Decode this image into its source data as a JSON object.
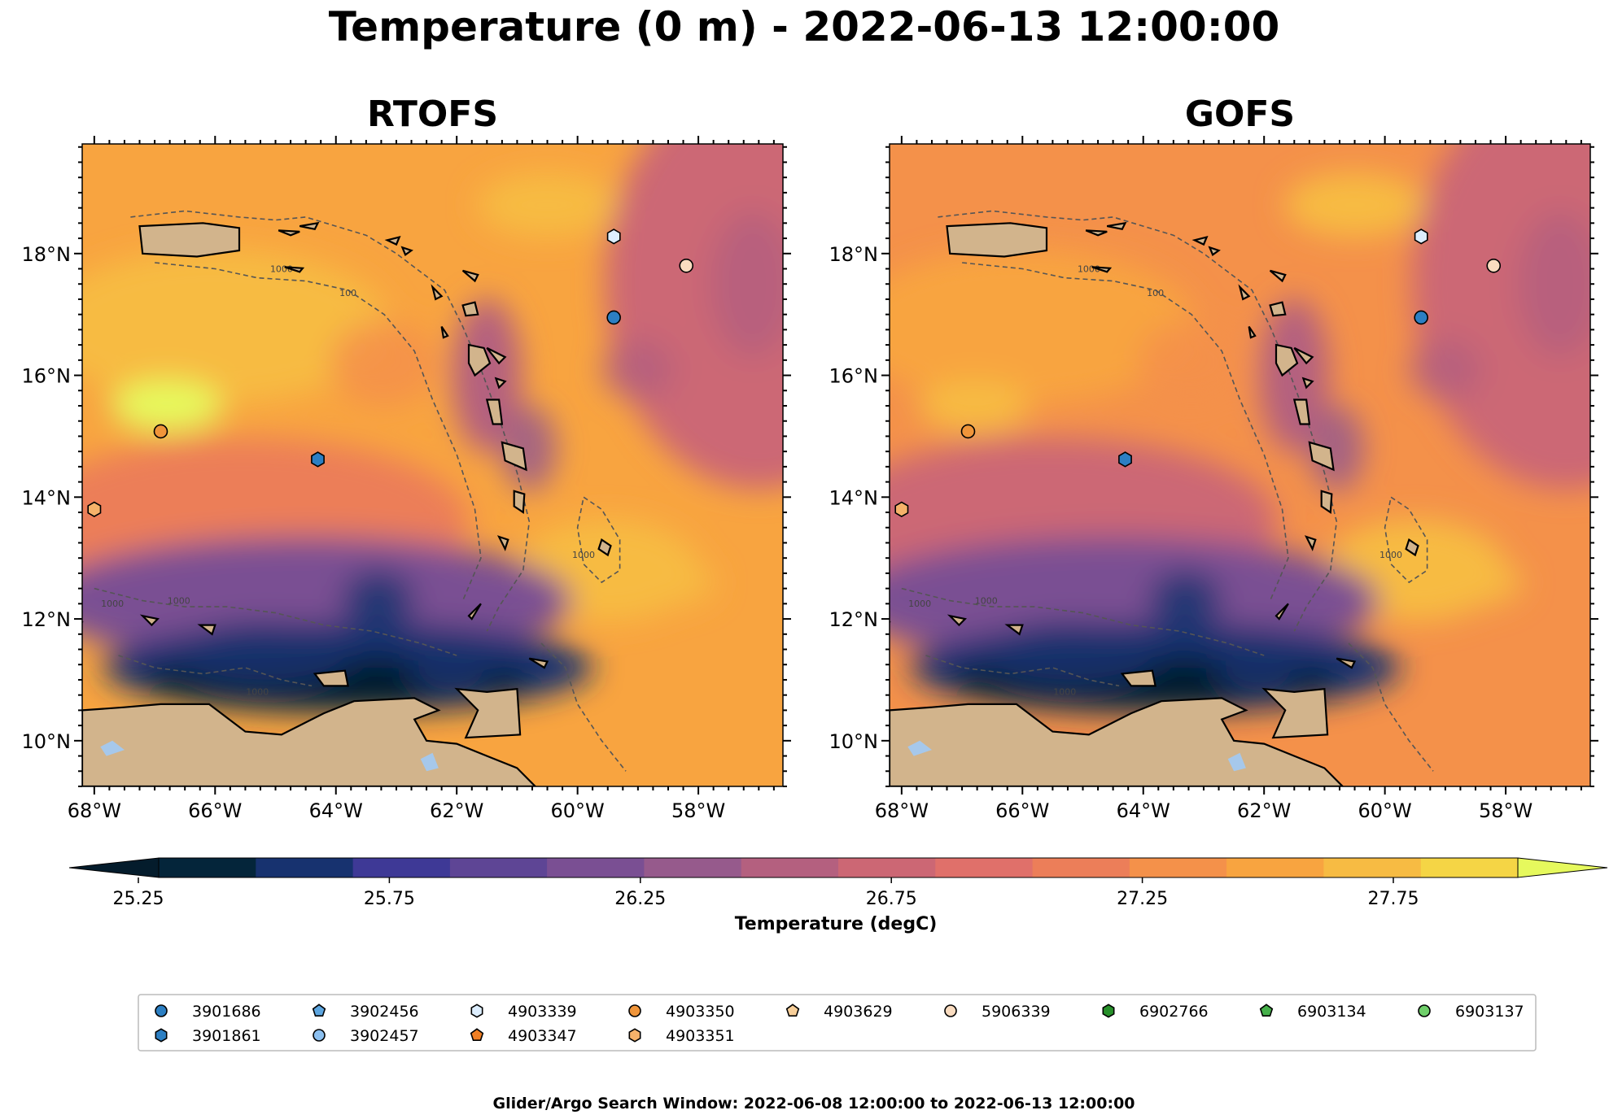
{
  "figure": {
    "title": "Temperature (0 m) - 2022-06-13 12:00:00",
    "footer": "Glider/Argo Search Window: 2022-06-08 12:00:00 to 2022-06-13 12:00:00"
  },
  "chart_data": [
    {
      "type": "heatmap",
      "title": "RTOFS",
      "model": "rtofs",
      "xlim": [
        -68.2,
        -56.6
      ],
      "ylim": [
        9.25,
        19.8
      ],
      "xticks": [
        -68,
        -66,
        -64,
        -62,
        -60,
        -58
      ],
      "yticks": [
        10,
        12,
        14,
        16,
        18
      ],
      "xticklabels": [
        "68°W",
        "66°W",
        "64°W",
        "62°W",
        "60°W",
        "58°W"
      ],
      "yticklabels": [
        "10°N",
        "12°N",
        "14°N",
        "16°N",
        "18°N"
      ]
    },
    {
      "type": "heatmap",
      "title": "GOFS",
      "model": "gofs",
      "xlim": [
        -68.2,
        -56.6
      ],
      "ylim": [
        9.25,
        19.8
      ],
      "xticks": [
        -68,
        -66,
        -64,
        -62,
        -60,
        -58
      ],
      "yticks": [
        10,
        12,
        14,
        16,
        18
      ],
      "xticklabels": [
        "68°W",
        "66°W",
        "64°W",
        "62°W",
        "60°W",
        "58°W"
      ],
      "yticklabels": [
        "10°N",
        "12°N",
        "14°N",
        "16°N",
        "18°N"
      ]
    }
  ],
  "colorbar": {
    "label": "Temperature (degC)",
    "ticks": [
      25.25,
      25.75,
      26.25,
      26.75,
      27.25,
      27.75
    ],
    "ticklabels": [
      "25.25",
      "25.75",
      "26.25",
      "26.75",
      "27.25",
      "27.75"
    ],
    "levels": [
      25.25,
      25.375,
      25.5,
      25.625,
      25.75,
      25.875,
      26.0,
      26.125,
      26.25,
      26.375,
      26.5,
      26.625,
      26.75,
      26.875,
      27.0,
      27.125,
      27.25,
      27.375,
      27.5,
      27.625,
      27.75,
      27.875,
      28.0
    ],
    "colors": [
      "#04253a",
      "#17326f",
      "#3e3996",
      "#5e4595",
      "#7a4f93",
      "#965a8c",
      "#b4607f",
      "#cc6774",
      "#e0706a",
      "#ec7e59",
      "#f4914a",
      "#f8a440",
      "#f7bb43",
      "#f5d545"
    ],
    "under_color": "#041c2c",
    "over_color": "#e6f95d"
  },
  "colors": {
    "land": "#d2b48c",
    "lake": "#a6c8eb",
    "contour": "#555555"
  },
  "contour_label": "1000",
  "contour_label_2": "100",
  "floats": [
    {
      "id": "3901686",
      "lon": -59.4,
      "lat": 16.95,
      "color": "#2c7fc3",
      "marker": "circle"
    },
    {
      "id": "3901861",
      "lon": -64.3,
      "lat": 14.62,
      "color": "#2c7fc3",
      "marker": "hexagon"
    },
    {
      "id": "3902456",
      "lon": null,
      "lat": null,
      "color": "#5da6e0",
      "marker": "pentagon"
    },
    {
      "id": "3902457",
      "lon": null,
      "lat": null,
      "color": "#8cc0f0",
      "marker": "circle"
    },
    {
      "id": "4903339",
      "lon": -59.4,
      "lat": 18.28,
      "color": "#ddeeff",
      "marker": "hexagon"
    },
    {
      "id": "4903347",
      "lon": null,
      "lat": null,
      "color": "#f07f24",
      "marker": "pentagon"
    },
    {
      "id": "4903350",
      "lon": -66.9,
      "lat": 15.08,
      "color": "#f0953a",
      "marker": "circle"
    },
    {
      "id": "4903351",
      "lon": null,
      "lat": null,
      "color": "#f5b26a",
      "marker": "hexagon"
    },
    {
      "id": "4903629",
      "lon": null,
      "lat": null,
      "color": "#f8cf99",
      "marker": "pentagon"
    },
    {
      "id": "5906339",
      "lon": -58.2,
      "lat": 17.8,
      "color": "#fadcc0",
      "marker": "circle"
    },
    {
      "id": "6902766",
      "lon": null,
      "lat": null,
      "color": "#27902a",
      "marker": "hexagon"
    },
    {
      "id": "6903134",
      "lon": null,
      "lat": null,
      "color": "#45b04a",
      "marker": "pentagon"
    },
    {
      "id": "6903137",
      "lon": null,
      "lat": null,
      "color": "#6fcf6a",
      "marker": "circle"
    },
    {
      "id": "4903351-west",
      "lon": -68.0,
      "lat": 13.8,
      "color": "#f5b26a",
      "marker": "hexagon",
      "mapOnly": true
    }
  ]
}
